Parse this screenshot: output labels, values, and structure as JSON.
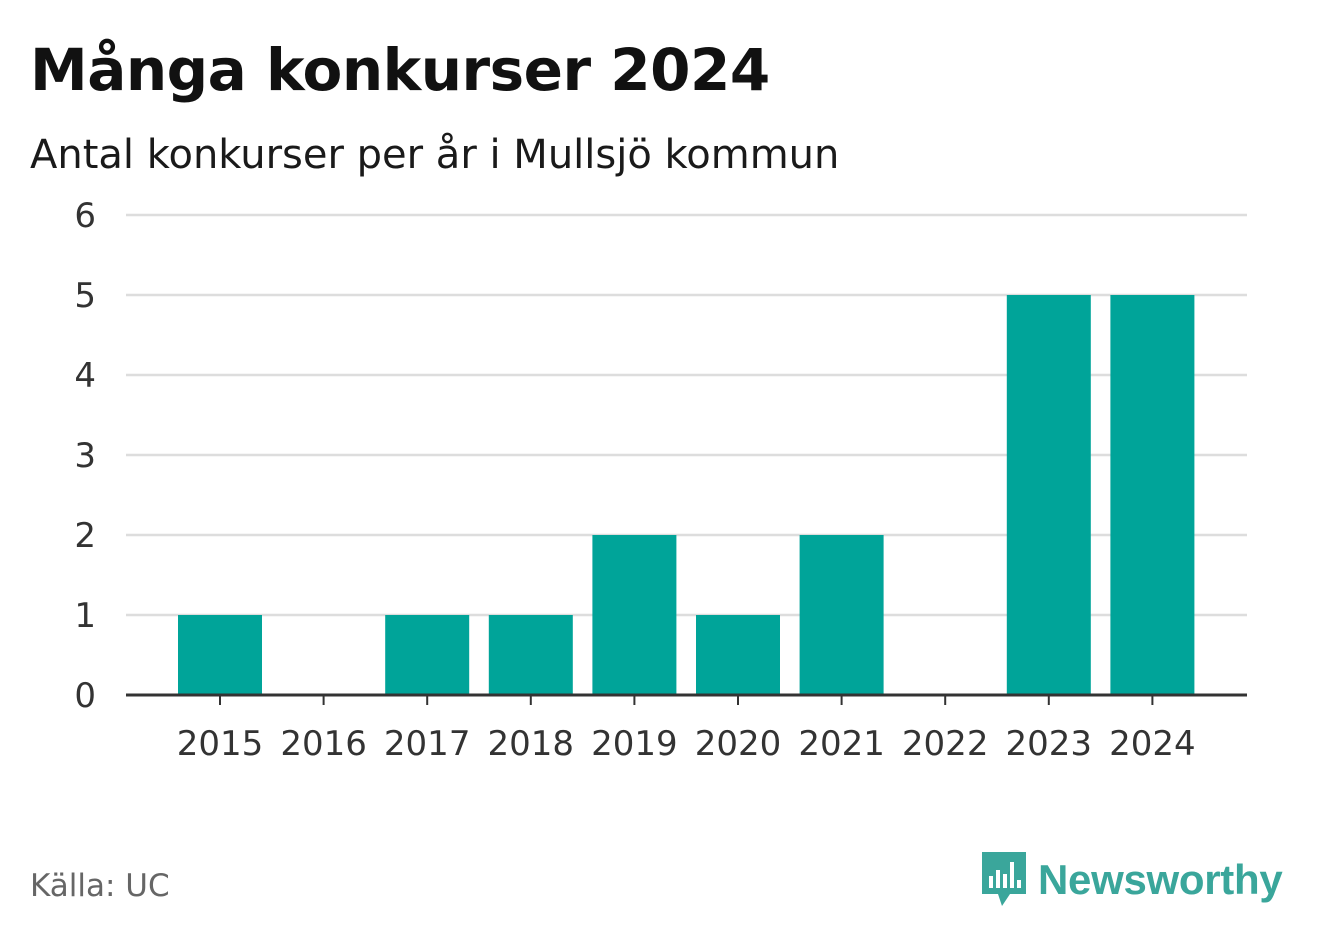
{
  "header": {
    "title": "Många konkurser 2024",
    "subtitle": "Antal konkurser per år i Mullsjö kommun"
  },
  "footer": {
    "source": "Källa: UC",
    "brand_name": "Newsworthy",
    "brand_icon": "newsworthy-logo-icon",
    "brand_color": "#3aa69b"
  },
  "colors": {
    "bar": "#00a499",
    "grid": "#dddddd",
    "axis": "#333333",
    "text": "#333333"
  },
  "chart_data": {
    "type": "bar",
    "categories": [
      "2015",
      "2016",
      "2017",
      "2018",
      "2019",
      "2020",
      "2021",
      "2022",
      "2023",
      "2024"
    ],
    "values": [
      1,
      0,
      1,
      1,
      2,
      1,
      2,
      0,
      5,
      5
    ],
    "title": "Många konkurser 2024",
    "subtitle": "Antal konkurser per år i Mullsjö kommun",
    "xlabel": "",
    "ylabel": "",
    "ylim": [
      0,
      6
    ],
    "yticks": [
      0,
      1,
      2,
      3,
      4,
      5,
      6
    ],
    "grid": true,
    "legend": "none"
  }
}
